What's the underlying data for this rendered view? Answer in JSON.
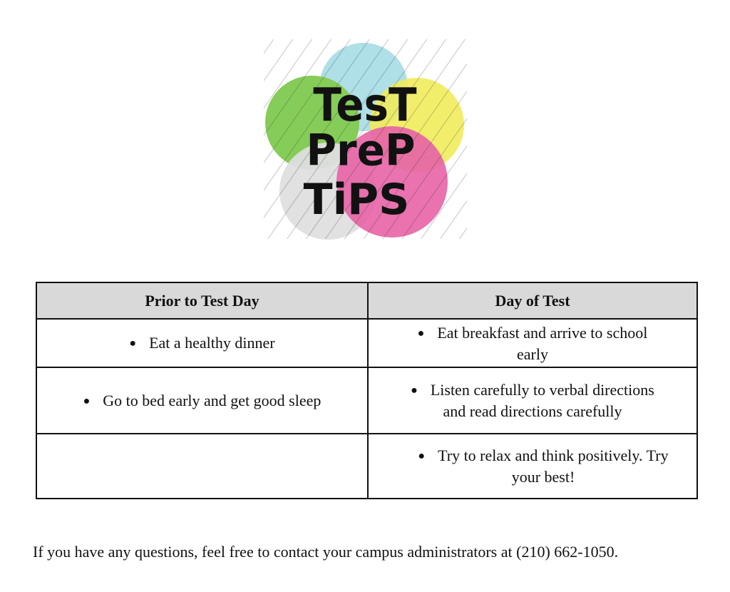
{
  "logo": {
    "text": "TEST PREP TIPS",
    "lines": [
      "TesT",
      "PreP",
      "TiPS"
    ],
    "colors": {
      "blue": "#a9dde6",
      "green": "#7cc84a",
      "yellow": "#eeea4e",
      "gray": "#dcdcdc",
      "pink": "#e4559f"
    }
  },
  "table": {
    "headers": [
      "Prior to Test Day",
      "Day of Test"
    ],
    "rows": [
      [
        "Eat a healthy dinner",
        "Eat breakfast and arrive to school early"
      ],
      [
        "Go to bed early and get good sleep",
        "Listen carefully to verbal directions and read directions carefully"
      ],
      [
        "",
        "Try to relax and think positively. Try your best!"
      ]
    ],
    "bullet": "●"
  },
  "footer": "If you have any questions, feel free to contact your campus administrators at (210) 662-1050."
}
